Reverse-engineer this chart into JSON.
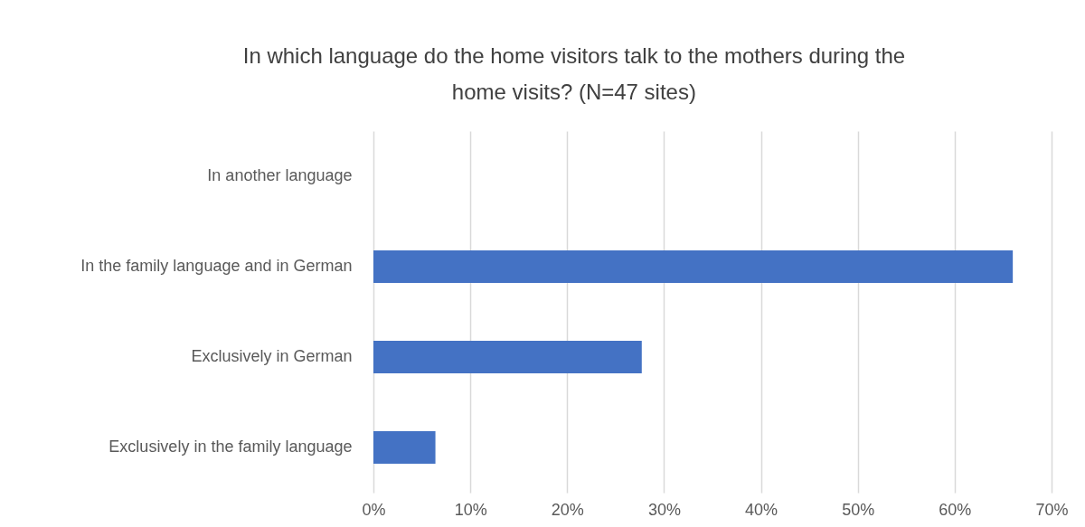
{
  "chart_data": {
    "type": "bar",
    "orientation": "horizontal",
    "title": "In which language do the home visitors talk to the mothers during the home visits? (N=47 sites)",
    "categories": [
      "In another language",
      "In the family language and in German",
      "Exclusively in German",
      "Exclusively in the family language"
    ],
    "values": [
      0,
      66,
      27.7,
      6.4
    ],
    "color": "#4472c4",
    "xlim": [
      0,
      70
    ],
    "xticks": [
      {
        "value": 0,
        "label": "0%"
      },
      {
        "value": 10,
        "label": "10%"
      },
      {
        "value": 20,
        "label": "20%"
      },
      {
        "value": 30,
        "label": "30%"
      },
      {
        "value": 40,
        "label": "40%"
      },
      {
        "value": 50,
        "label": "50%"
      },
      {
        "value": 60,
        "label": "60%"
      },
      {
        "value": 70,
        "label": "70%"
      }
    ],
    "grid": "x"
  }
}
